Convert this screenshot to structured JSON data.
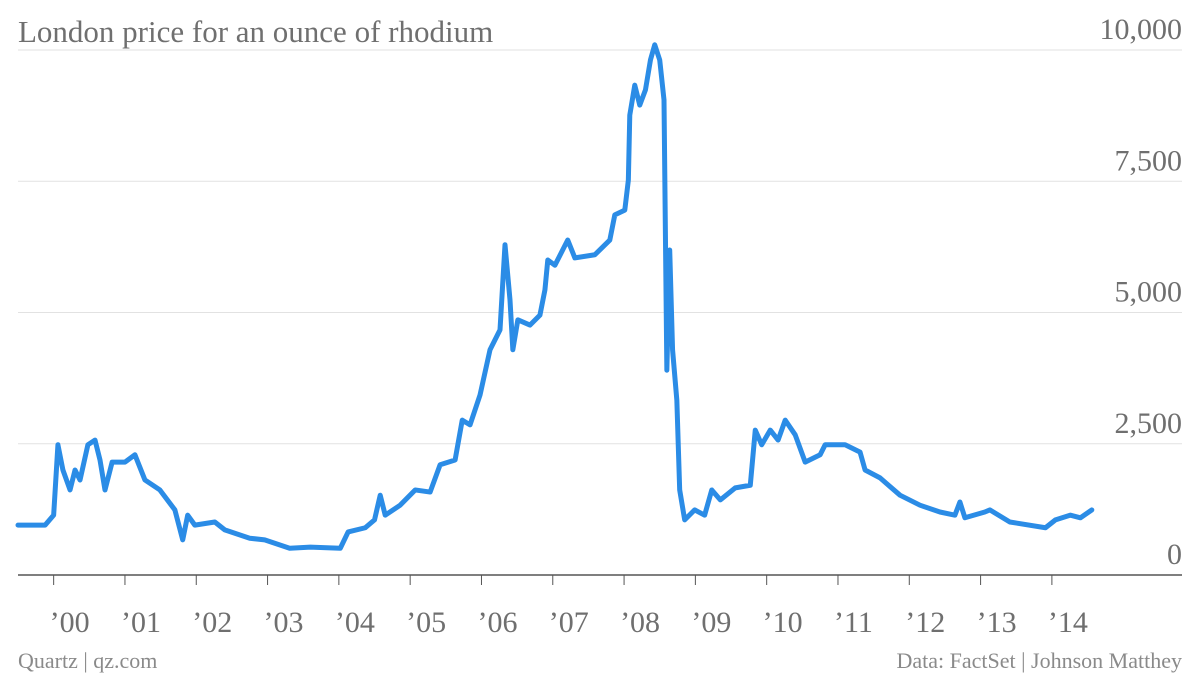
{
  "chart_data": {
    "type": "line",
    "title": "London price for an ounce of rhodium",
    "source": "Data: FactSet | Johnson Matthey",
    "credit": "Quartz | qz.com",
    "color": "#2b8ce6",
    "x": [
      1999.5,
      1999.88,
      2000.0,
      2000.06,
      2000.13,
      2000.23,
      2000.3,
      2000.37,
      2000.48,
      2000.58,
      2000.65,
      2000.72,
      2000.82,
      2001.0,
      2001.14,
      2001.28,
      2001.49,
      2001.7,
      2001.81,
      2001.88,
      2001.98,
      2002.26,
      2002.4,
      2002.75,
      2002.96,
      2003.31,
      2003.6,
      2004.02,
      2004.13,
      2004.37,
      2004.5,
      2004.58,
      2004.65,
      2004.86,
      2005.07,
      2005.28,
      2005.42,
      2005.63,
      2005.73,
      2005.84,
      2005.98,
      2006.12,
      2006.26,
      2006.33,
      2006.4,
      2006.44,
      2006.51,
      2006.68,
      2006.82,
      2006.89,
      2006.93,
      2007.03,
      2007.21,
      2007.31,
      2007.59,
      2007.8,
      2007.87,
      2008.01,
      2008.06,
      2008.08,
      2008.15,
      2008.22,
      2008.3,
      2008.37,
      2008.43,
      2008.5,
      2008.56,
      2008.6,
      2008.64,
      2008.68,
      2008.74,
      2008.78,
      2008.85,
      2008.99,
      2009.13,
      2009.23,
      2009.35,
      2009.56,
      2009.77,
      2009.84,
      2009.93,
      2010.05,
      2010.16,
      2010.26,
      2010.4,
      2010.54,
      2010.75,
      2010.82,
      2011.1,
      2011.31,
      2011.38,
      2011.59,
      2011.87,
      2012.15,
      2012.43,
      2012.64,
      2012.71,
      2012.78,
      2013.06,
      2013.13,
      2013.41,
      2013.91,
      2014.05,
      2014.26,
      2014.4,
      2014.56
    ],
    "values": [
      950,
      950,
      1140,
      2480,
      2000,
      1620,
      2000,
      1810,
      2480,
      2570,
      2190,
      1620,
      2150,
      2150,
      2290,
      1810,
      1620,
      1240,
      670,
      1140,
      950,
      1010,
      860,
      700,
      670,
      510,
      530,
      510,
      820,
      900,
      1050,
      1520,
      1140,
      1330,
      1620,
      1580,
      2100,
      2190,
      2950,
      2860,
      3430,
      4290,
      4670,
      6290,
      5240,
      4290,
      4860,
      4760,
      4950,
      5430,
      6000,
      5900,
      6380,
      6040,
      6100,
      6380,
      6860,
      6950,
      7520,
      8760,
      9330,
      8950,
      9240,
      9810,
      10100,
      9810,
      9050,
      3900,
      6190,
      4290,
      3330,
      1620,
      1050,
      1240,
      1140,
      1620,
      1430,
      1660,
      1710,
      2760,
      2480,
      2760,
      2570,
      2950,
      2670,
      2150,
      2290,
      2480,
      2480,
      2340,
      2000,
      1850,
      1520,
      1330,
      1200,
      1140,
      1390,
      1090,
      1200,
      1240,
      1010,
      900,
      1050,
      1140,
      1090,
      1240
    ],
    "xlim": [
      1999.5,
      2014.7
    ],
    "ylim": [
      0,
      10000
    ],
    "xticks": [
      {
        "value": 2000,
        "label": "’00"
      },
      {
        "value": 2001,
        "label": "’01"
      },
      {
        "value": 2002,
        "label": "’02"
      },
      {
        "value": 2003,
        "label": "’03"
      },
      {
        "value": 2004,
        "label": "’04"
      },
      {
        "value": 2005,
        "label": "’05"
      },
      {
        "value": 2006,
        "label": "’06"
      },
      {
        "value": 2007,
        "label": "’07"
      },
      {
        "value": 2008,
        "label": "’08"
      },
      {
        "value": 2009,
        "label": "’09"
      },
      {
        "value": 2010,
        "label": "’10"
      },
      {
        "value": 2011,
        "label": "’11"
      },
      {
        "value": 2012,
        "label": "’12"
      },
      {
        "value": 2013,
        "label": "’13"
      },
      {
        "value": 2014,
        "label": "’14"
      }
    ],
    "yticks": [
      0,
      {
        "value": 2500,
        "label": "2,500"
      },
      {
        "value": 5000,
        "label": "5,000"
      },
      {
        "value": 7500,
        "label": "7,500"
      },
      {
        "value": 10000,
        "label": "10,000"
      }
    ],
    "grid": true
  }
}
